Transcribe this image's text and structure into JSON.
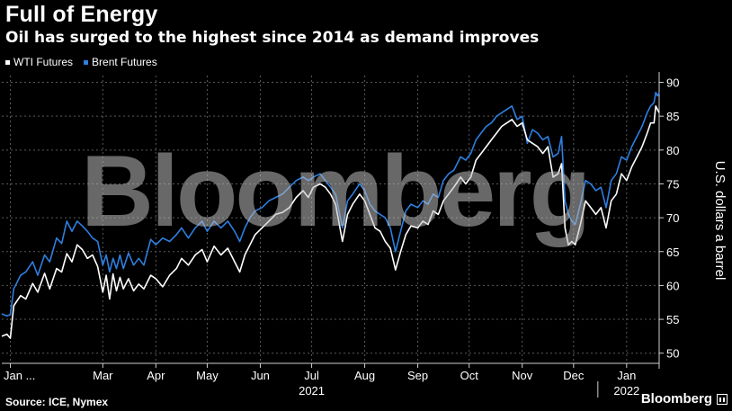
{
  "header": {
    "title": "Full of Energy",
    "subtitle": "Oil has surged to the highest since 2014 as demand improves"
  },
  "footer": {
    "source": "Source: ICE, Nymex",
    "brand": "Bloomberg"
  },
  "watermark": "Bloomberg",
  "colors": {
    "wti": "#ffffff",
    "brent": "#2e7fe0",
    "grid": "#5a5a5a",
    "axis": "#cfcfcf"
  },
  "chart_data": {
    "type": "line",
    "ylabel": "U.S. dollars a barrel",
    "ylim": [
      48.5,
      91
    ],
    "yticks": [
      50,
      55,
      60,
      65,
      70,
      75,
      80,
      85,
      90
    ],
    "xlim": [
      "2021-01-01",
      "2022-01-20"
    ],
    "xticks": [
      {
        "date": "2021-01-06",
        "label": "Jan ..."
      },
      {
        "date": "2021-03-01",
        "label": "Mar"
      },
      {
        "date": "2021-04-01",
        "label": "Apr"
      },
      {
        "date": "2021-05-01",
        "label": "May"
      },
      {
        "date": "2021-06-01",
        "label": "Jun"
      },
      {
        "date": "2021-07-01",
        "label": "Jul"
      },
      {
        "date": "2021-08-01",
        "label": "Aug"
      },
      {
        "date": "2021-09-01",
        "label": "Sep"
      },
      {
        "date": "2021-10-01",
        "label": "Oct"
      },
      {
        "date": "2021-11-01",
        "label": "Nov"
      },
      {
        "date": "2021-12-01",
        "label": "Dec"
      },
      {
        "date": "2022-01-01",
        "label": "Jan"
      }
    ],
    "year_labels": [
      {
        "date": "2021-07-01",
        "label": "2021"
      },
      {
        "date": "2022-01-01",
        "label": "2022"
      }
    ],
    "legend": [
      "WTI Futures",
      "Brent Futures"
    ],
    "series": [
      {
        "name": "WTI Futures",
        "points": [
          [
            "2021-01-01",
            52.5
          ],
          [
            "2021-01-04",
            52.8
          ],
          [
            "2021-01-06",
            52.2
          ],
          [
            "2021-01-08",
            57.0
          ],
          [
            "2021-01-12",
            58.5
          ],
          [
            "2021-01-15",
            58.0
          ],
          [
            "2021-01-19",
            60.3
          ],
          [
            "2021-01-22",
            59.0
          ],
          [
            "2021-01-26",
            61.8
          ],
          [
            "2021-01-29",
            59.5
          ],
          [
            "2021-02-02",
            62.5
          ],
          [
            "2021-02-05",
            62.0
          ],
          [
            "2021-02-08",
            64.7
          ],
          [
            "2021-02-11",
            63.5
          ],
          [
            "2021-02-14",
            66.0
          ],
          [
            "2021-02-17",
            65.3
          ],
          [
            "2021-02-20",
            64.0
          ],
          [
            "2021-02-23",
            64.5
          ],
          [
            "2021-02-26",
            62.8
          ],
          [
            "2021-03-01",
            59.0
          ],
          [
            "2021-03-03",
            61.5
          ],
          [
            "2021-03-05",
            58.0
          ],
          [
            "2021-03-07",
            61.7
          ],
          [
            "2021-03-09",
            59.2
          ],
          [
            "2021-03-11",
            61.2
          ],
          [
            "2021-03-13",
            59.5
          ],
          [
            "2021-03-16",
            61.0
          ],
          [
            "2021-03-19",
            59.2
          ],
          [
            "2021-03-22",
            60.2
          ],
          [
            "2021-03-25",
            59.5
          ],
          [
            "2021-03-29",
            61.5
          ],
          [
            "2021-04-01",
            61.0
          ],
          [
            "2021-04-05",
            59.8
          ],
          [
            "2021-04-09",
            61.5
          ],
          [
            "2021-04-13",
            62.5
          ],
          [
            "2021-04-16",
            64.0
          ],
          [
            "2021-04-20",
            63.0
          ],
          [
            "2021-04-24",
            64.5
          ],
          [
            "2021-04-28",
            65.3
          ],
          [
            "2021-05-01",
            63.5
          ],
          [
            "2021-05-05",
            65.8
          ],
          [
            "2021-05-09",
            64.5
          ],
          [
            "2021-05-13",
            65.5
          ],
          [
            "2021-05-17",
            63.5
          ],
          [
            "2021-05-20",
            62.0
          ],
          [
            "2021-05-23",
            64.5
          ],
          [
            "2021-05-26",
            66.0
          ],
          [
            "2021-05-29",
            67.5
          ],
          [
            "2021-06-02",
            68.5
          ],
          [
            "2021-06-06",
            69.5
          ],
          [
            "2021-06-10",
            70.5
          ],
          [
            "2021-06-14",
            70.8
          ],
          [
            "2021-06-18",
            71.5
          ],
          [
            "2021-06-22",
            73.0
          ],
          [
            "2021-06-26",
            74.0
          ],
          [
            "2021-06-29",
            73.0
          ],
          [
            "2021-07-02",
            74.5
          ],
          [
            "2021-07-06",
            75.0
          ],
          [
            "2021-07-09",
            74.5
          ],
          [
            "2021-07-12",
            73.5
          ],
          [
            "2021-07-15",
            72.0
          ],
          [
            "2021-07-19",
            66.5
          ],
          [
            "2021-07-22",
            70.5
          ],
          [
            "2021-07-25",
            72.0
          ],
          [
            "2021-07-29",
            73.5
          ],
          [
            "2021-08-01",
            72.5
          ],
          [
            "2021-08-04",
            70.5
          ],
          [
            "2021-08-07",
            68.5
          ],
          [
            "2021-08-10",
            68.0
          ],
          [
            "2021-08-13",
            66.5
          ],
          [
            "2021-08-16",
            65.5
          ],
          [
            "2021-08-19",
            62.3
          ],
          [
            "2021-08-22",
            65.0
          ],
          [
            "2021-08-25",
            67.5
          ],
          [
            "2021-08-28",
            68.8
          ],
          [
            "2021-09-01",
            68.5
          ],
          [
            "2021-09-04",
            69.5
          ],
          [
            "2021-09-07",
            69.0
          ],
          [
            "2021-09-10",
            71.0
          ],
          [
            "2021-09-13",
            70.5
          ],
          [
            "2021-09-16",
            72.5
          ],
          [
            "2021-09-19",
            73.5
          ],
          [
            "2021-09-22",
            74.5
          ],
          [
            "2021-09-26",
            76.0
          ],
          [
            "2021-09-29",
            75.0
          ],
          [
            "2021-10-02",
            76.0
          ],
          [
            "2021-10-05",
            78.5
          ],
          [
            "2021-10-08",
            79.5
          ],
          [
            "2021-10-11",
            80.5
          ],
          [
            "2021-10-14",
            81.5
          ],
          [
            "2021-10-17",
            82.5
          ],
          [
            "2021-10-20",
            83.5
          ],
          [
            "2021-10-23",
            84.0
          ],
          [
            "2021-10-26",
            84.5
          ],
          [
            "2021-10-29",
            83.5
          ],
          [
            "2021-11-01",
            84.0
          ],
          [
            "2021-11-04",
            81.5
          ],
          [
            "2021-11-07",
            81.0
          ],
          [
            "2021-11-10",
            80.5
          ],
          [
            "2021-11-13",
            79.5
          ],
          [
            "2021-11-16",
            80.5
          ],
          [
            "2021-11-19",
            76.0
          ],
          [
            "2021-11-22",
            76.5
          ],
          [
            "2021-11-24",
            78.0
          ],
          [
            "2021-11-26",
            68.5
          ],
          [
            "2021-11-28",
            66.0
          ],
          [
            "2021-11-30",
            66.5
          ],
          [
            "2021-12-02",
            66.0
          ],
          [
            "2021-12-05",
            69.0
          ],
          [
            "2021-12-08",
            72.5
          ],
          [
            "2021-12-11",
            71.5
          ],
          [
            "2021-12-14",
            70.5
          ],
          [
            "2021-12-17",
            71.5
          ],
          [
            "2021-12-20",
            68.5
          ],
          [
            "2021-12-23",
            72.5
          ],
          [
            "2021-12-26",
            73.5
          ],
          [
            "2021-12-29",
            76.5
          ],
          [
            "2022-01-01",
            75.5
          ],
          [
            "2022-01-04",
            77.5
          ],
          [
            "2022-01-07",
            79.0
          ],
          [
            "2022-01-10",
            80.5
          ],
          [
            "2022-01-13",
            82.5
          ],
          [
            "2022-01-15",
            84.0
          ],
          [
            "2022-01-17",
            84.0
          ],
          [
            "2022-01-18",
            86.5
          ],
          [
            "2022-01-19",
            86.0
          ],
          [
            "2022-01-20",
            85.5
          ]
        ]
      },
      {
        "name": "Brent Futures",
        "points": [
          [
            "2021-01-01",
            55.8
          ],
          [
            "2021-01-04",
            55.5
          ],
          [
            "2021-01-06",
            55.7
          ],
          [
            "2021-01-08",
            59.5
          ],
          [
            "2021-01-12",
            61.5
          ],
          [
            "2021-01-15",
            62.0
          ],
          [
            "2021-01-19",
            63.5
          ],
          [
            "2021-01-22",
            61.5
          ],
          [
            "2021-01-26",
            64.5
          ],
          [
            "2021-01-29",
            63.5
          ],
          [
            "2021-02-02",
            67.0
          ],
          [
            "2021-02-05",
            66.2
          ],
          [
            "2021-02-08",
            69.5
          ],
          [
            "2021-02-11",
            68.0
          ],
          [
            "2021-02-14",
            69.5
          ],
          [
            "2021-02-17",
            68.8
          ],
          [
            "2021-02-20",
            68.0
          ],
          [
            "2021-02-23",
            67.0
          ],
          [
            "2021-02-26",
            66.5
          ],
          [
            "2021-03-01",
            63.0
          ],
          [
            "2021-03-03",
            64.5
          ],
          [
            "2021-03-05",
            62.0
          ],
          [
            "2021-03-07",
            64.0
          ],
          [
            "2021-03-09",
            62.5
          ],
          [
            "2021-03-11",
            64.5
          ],
          [
            "2021-03-13",
            62.5
          ],
          [
            "2021-03-16",
            64.8
          ],
          [
            "2021-03-19",
            63.0
          ],
          [
            "2021-03-22",
            64.0
          ],
          [
            "2021-03-25",
            63.0
          ],
          [
            "2021-03-29",
            66.8
          ],
          [
            "2021-04-01",
            66.0
          ],
          [
            "2021-04-05",
            67.0
          ],
          [
            "2021-04-09",
            66.5
          ],
          [
            "2021-04-13",
            67.5
          ],
          [
            "2021-04-16",
            68.5
          ],
          [
            "2021-04-20",
            67.0
          ],
          [
            "2021-04-24",
            68.5
          ],
          [
            "2021-04-28",
            69.5
          ],
          [
            "2021-05-01",
            68.0
          ],
          [
            "2021-05-05",
            69.5
          ],
          [
            "2021-05-09",
            68.5
          ],
          [
            "2021-05-13",
            69.5
          ],
          [
            "2021-05-17",
            68.0
          ],
          [
            "2021-05-20",
            66.5
          ],
          [
            "2021-05-23",
            68.5
          ],
          [
            "2021-05-26",
            70.0
          ],
          [
            "2021-05-29",
            71.0
          ],
          [
            "2021-06-02",
            71.5
          ],
          [
            "2021-06-06",
            72.5
          ],
          [
            "2021-06-10",
            73.0
          ],
          [
            "2021-06-14",
            73.5
          ],
          [
            "2021-06-18",
            74.5
          ],
          [
            "2021-06-22",
            75.5
          ],
          [
            "2021-06-26",
            76.0
          ],
          [
            "2021-06-29",
            75.5
          ],
          [
            "2021-07-02",
            76.0
          ],
          [
            "2021-07-06",
            76.5
          ],
          [
            "2021-07-09",
            75.5
          ],
          [
            "2021-07-12",
            74.5
          ],
          [
            "2021-07-15",
            73.5
          ],
          [
            "2021-07-19",
            68.5
          ],
          [
            "2021-07-22",
            72.5
          ],
          [
            "2021-07-25",
            73.5
          ],
          [
            "2021-07-29",
            75.0
          ],
          [
            "2021-08-01",
            74.0
          ],
          [
            "2021-08-04",
            72.0
          ],
          [
            "2021-08-07",
            71.0
          ],
          [
            "2021-08-10",
            70.5
          ],
          [
            "2021-08-13",
            70.0
          ],
          [
            "2021-08-16",
            68.5
          ],
          [
            "2021-08-19",
            65.0
          ],
          [
            "2021-08-22",
            68.0
          ],
          [
            "2021-08-25",
            71.0
          ],
          [
            "2021-08-28",
            72.0
          ],
          [
            "2021-09-01",
            71.5
          ],
          [
            "2021-09-04",
            72.5
          ],
          [
            "2021-09-07",
            72.0
          ],
          [
            "2021-09-10",
            73.5
          ],
          [
            "2021-09-13",
            73.0
          ],
          [
            "2021-09-16",
            75.5
          ],
          [
            "2021-09-19",
            76.5
          ],
          [
            "2021-09-22",
            77.0
          ],
          [
            "2021-09-26",
            79.0
          ],
          [
            "2021-09-29",
            78.5
          ],
          [
            "2021-10-02",
            79.5
          ],
          [
            "2021-10-05",
            81.5
          ],
          [
            "2021-10-08",
            82.5
          ],
          [
            "2021-10-11",
            83.5
          ],
          [
            "2021-10-14",
            84.0
          ],
          [
            "2021-10-17",
            85.0
          ],
          [
            "2021-10-20",
            85.5
          ],
          [
            "2021-10-23",
            86.0
          ],
          [
            "2021-10-26",
            86.5
          ],
          [
            "2021-10-29",
            84.5
          ],
          [
            "2021-11-01",
            85.0
          ],
          [
            "2021-11-04",
            81.0
          ],
          [
            "2021-11-07",
            83.0
          ],
          [
            "2021-11-10",
            82.5
          ],
          [
            "2021-11-13",
            81.5
          ],
          [
            "2021-11-16",
            82.0
          ],
          [
            "2021-11-19",
            79.0
          ],
          [
            "2021-11-22",
            79.5
          ],
          [
            "2021-11-24",
            82.0
          ],
          [
            "2021-11-26",
            72.5
          ],
          [
            "2021-11-28",
            70.5
          ],
          [
            "2021-11-30",
            69.5
          ],
          [
            "2021-12-02",
            69.0
          ],
          [
            "2021-12-05",
            72.0
          ],
          [
            "2021-12-08",
            75.5
          ],
          [
            "2021-12-11",
            75.0
          ],
          [
            "2021-12-14",
            74.0
          ],
          [
            "2021-12-17",
            74.5
          ],
          [
            "2021-12-20",
            71.5
          ],
          [
            "2021-12-23",
            75.5
          ],
          [
            "2021-12-26",
            76.5
          ],
          [
            "2021-12-29",
            79.0
          ],
          [
            "2022-01-01",
            78.5
          ],
          [
            "2022-01-04",
            80.5
          ],
          [
            "2022-01-07",
            82.0
          ],
          [
            "2022-01-10",
            83.5
          ],
          [
            "2022-01-13",
            85.5
          ],
          [
            "2022-01-15",
            86.5
          ],
          [
            "2022-01-17",
            87.0
          ],
          [
            "2022-01-18",
            88.5
          ],
          [
            "2022-01-19",
            88.0
          ],
          [
            "2022-01-20",
            88.5
          ]
        ]
      }
    ]
  }
}
